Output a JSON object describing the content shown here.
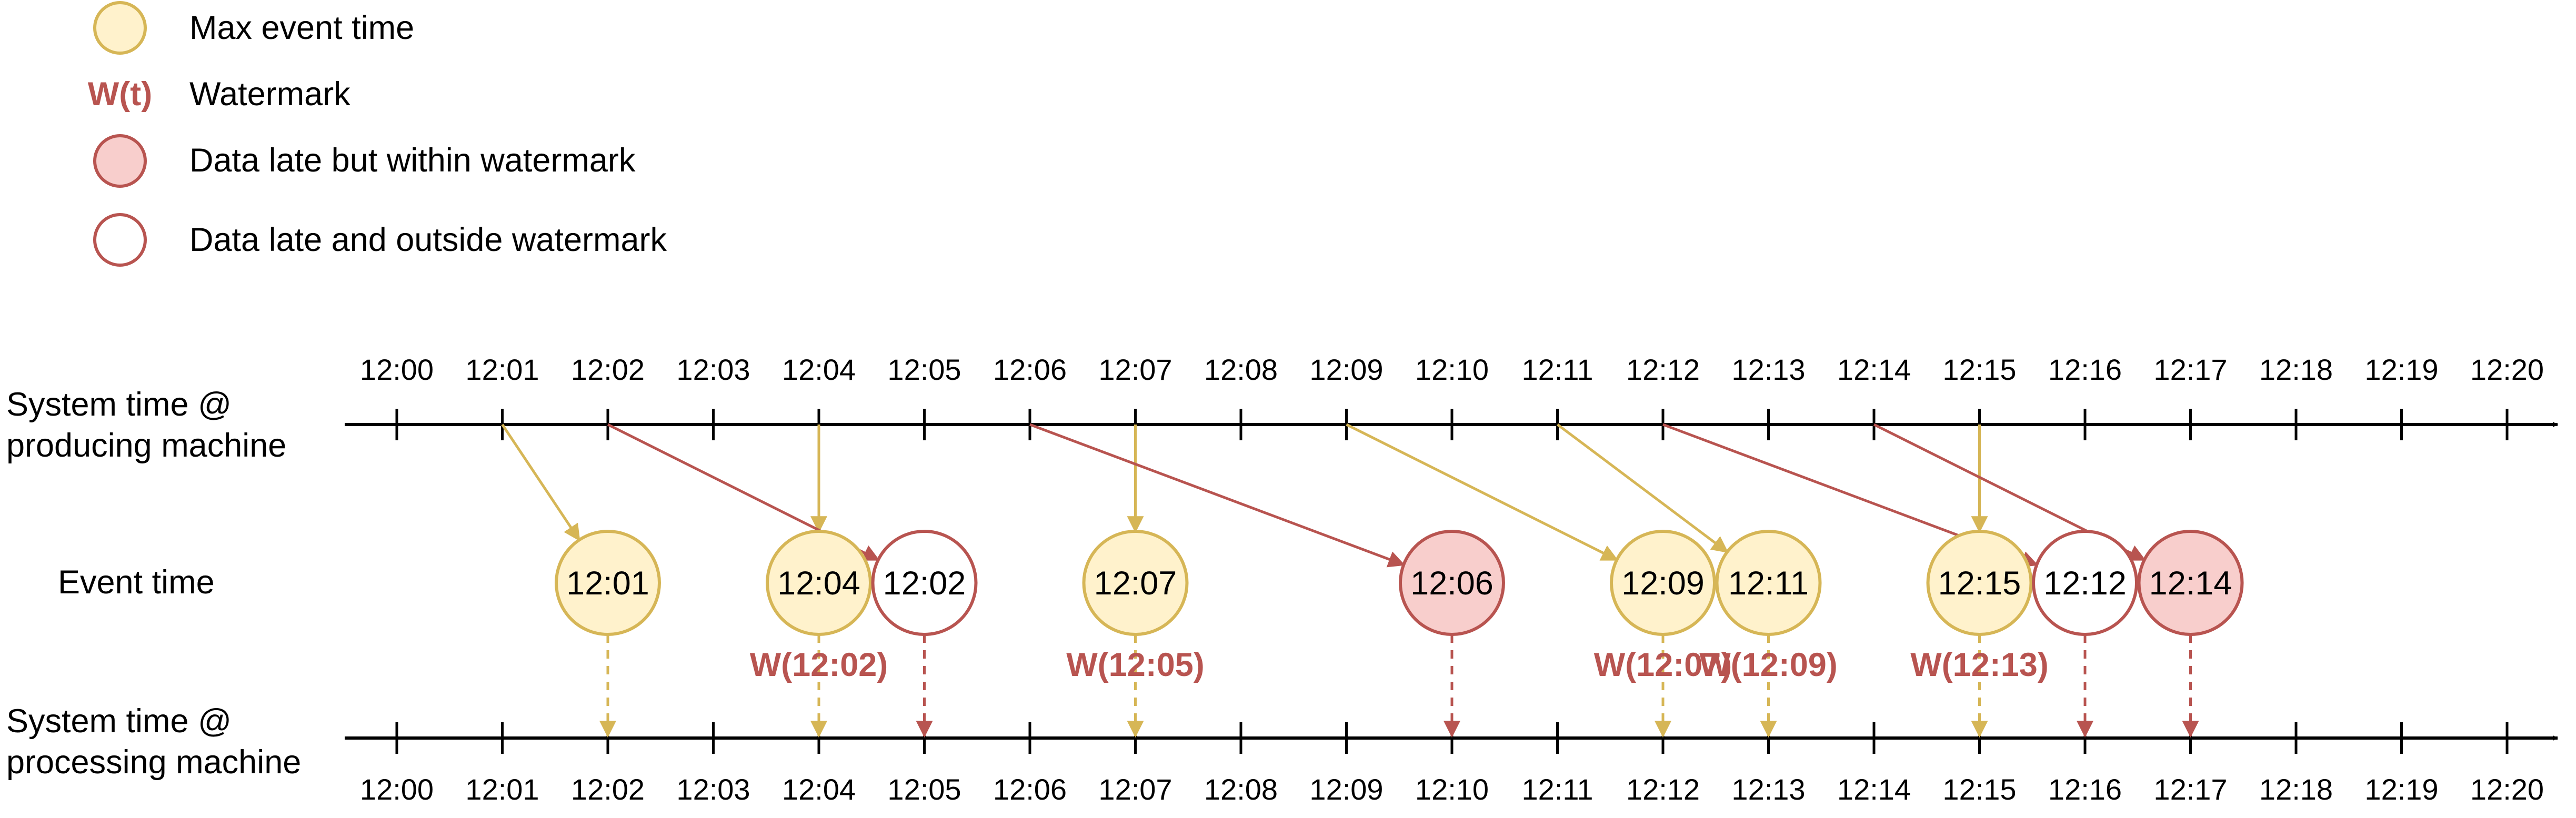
{
  "legend": {
    "items": [
      {
        "key": "max_event",
        "label": "Max event time"
      },
      {
        "key": "watermark",
        "label": "Watermark",
        "symbol": "W(t)"
      },
      {
        "key": "late_within",
        "label": "Data late but within watermark"
      },
      {
        "key": "late_outside",
        "label": "Data late and outside watermark"
      }
    ]
  },
  "labels": {
    "producing": [
      "System time @",
      "producing machine"
    ],
    "event_time": "Event time",
    "processing": [
      "System time @",
      "processing machine"
    ]
  },
  "timeline": {
    "ticks": [
      "12:00",
      "12:01",
      "12:02",
      "12:03",
      "12:04",
      "12:05",
      "12:06",
      "12:07",
      "12:08",
      "12:09",
      "12:10",
      "12:11",
      "12:12",
      "12:13",
      "12:14",
      "12:15",
      "12:16",
      "12:17",
      "12:18",
      "12:19",
      "12:20"
    ]
  },
  "events": [
    {
      "label": "12:01",
      "produced": 1,
      "processed": 2,
      "kind": "max_event"
    },
    {
      "label": "12:04",
      "produced": 4,
      "processed": 4,
      "kind": "max_event",
      "watermark": "W(12:02)"
    },
    {
      "label": "12:02",
      "produced": 2,
      "processed": 5,
      "kind": "late_outside"
    },
    {
      "label": "12:07",
      "produced": 7,
      "processed": 7,
      "kind": "max_event",
      "watermark": "W(12:05)"
    },
    {
      "label": "12:06",
      "produced": 6,
      "processed": 10,
      "kind": "late_within"
    },
    {
      "label": "12:09",
      "produced": 9,
      "processed": 12,
      "kind": "max_event",
      "watermark": "W(12:07)"
    },
    {
      "label": "12:11",
      "produced": 11,
      "processed": 13,
      "kind": "max_event",
      "watermark": "W(12:09)"
    },
    {
      "label": "12:15",
      "produced": 15,
      "processed": 15,
      "kind": "max_event",
      "watermark": "W(12:13)"
    },
    {
      "label": "12:12",
      "produced": 12,
      "processed": 16,
      "kind": "late_outside"
    },
    {
      "label": "12:14",
      "produced": 14,
      "processed": 17,
      "kind": "late_within"
    }
  ],
  "colors": {
    "yellow_fill": "#fff2cc",
    "yellow_stroke": "#d6b656",
    "red_fill": "#f8cecc",
    "red_stroke": "#b85450",
    "white_fill": "#ffffff",
    "watermark_text": "#b85450",
    "axis": "#000000"
  }
}
